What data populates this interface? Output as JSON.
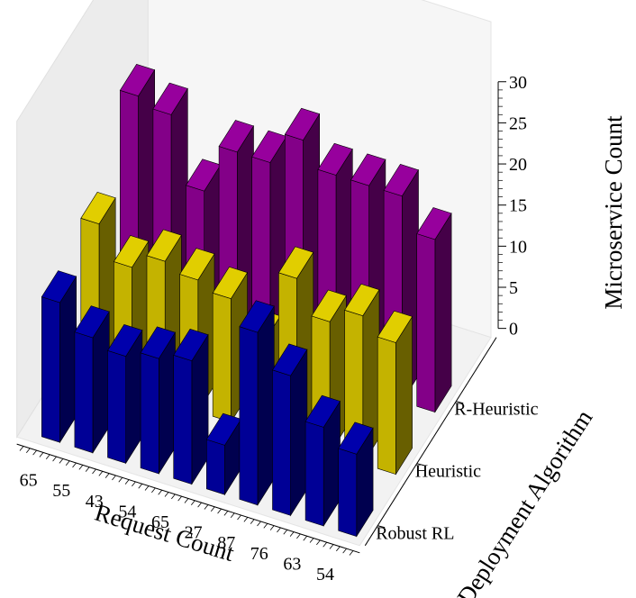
{
  "chart_data": {
    "type": "bar3d",
    "xlabel": "Request Count",
    "ylabel": "Deployment Algorithm",
    "zlabel": "Microservice Count",
    "x_tick_labels": [
      "65",
      "55",
      "43",
      "54",
      "65",
      "27",
      "87",
      "76",
      "63",
      "54"
    ],
    "y_tick_labels": [
      "Robust RL",
      "Heuristic",
      "R-Heuristic"
    ],
    "z_ticks": [
      "0",
      "5",
      "10",
      "15",
      "20",
      "25",
      "30"
    ],
    "zlim": [
      0,
      30
    ],
    "series": [
      {
        "name": "Robust RL",
        "color": "#0000b0",
        "values": [
          17,
          14,
          13,
          14,
          15,
          6,
          21,
          17,
          12,
          10
        ]
      },
      {
        "name": "Heuristic",
        "color": "#e6d200",
        "values": [
          19,
          15,
          17,
          16,
          15,
          11,
          20,
          16,
          18,
          16
        ]
      },
      {
        "name": "R-Heuristic",
        "color": "#9a00a0",
        "values": [
          27,
          26,
          18,
          24,
          24,
          28,
          25,
          25,
          25,
          21
        ]
      }
    ],
    "grid": false
  }
}
